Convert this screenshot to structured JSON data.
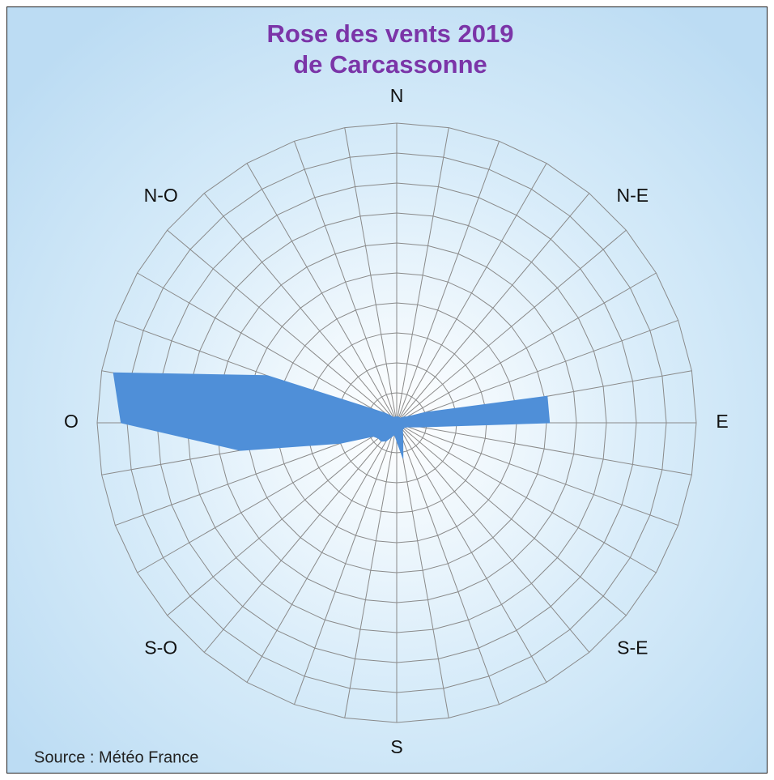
{
  "chart_data": {
    "type": "radar",
    "title": "Rose des vents 2019",
    "subtitle": "de Carcassonne",
    "source": "Source : Météo France",
    "compass_labels": [
      "N",
      "N-E",
      "E",
      "S-E",
      "S",
      "S-O",
      "O",
      "N-O"
    ],
    "x": [
      0,
      10,
      20,
      30,
      40,
      50,
      60,
      70,
      80,
      90,
      100,
      110,
      120,
      130,
      140,
      150,
      160,
      170,
      180,
      190,
      200,
      210,
      220,
      230,
      240,
      250,
      260,
      270,
      280,
      290,
      300,
      310,
      320,
      330,
      340,
      350
    ],
    "xlim": [
      0,
      360
    ],
    "values": [
      0.2,
      0.2,
      0.2,
      0.2,
      0.2,
      0.3,
      0.4,
      1.0,
      5.1,
      5.1,
      0.8,
      0.4,
      0.3,
      0.3,
      0.3,
      0.4,
      0.6,
      1.2,
      0.6,
      0.4,
      0.5,
      0.7,
      0.8,
      0.8,
      0.9,
      2.0,
      5.3,
      9.2,
      9.6,
      4.6,
      0.9,
      0.5,
      0.3,
      0.2,
      0.2,
      0.2
    ],
    "color": "#4f8fd8",
    "rlim": [
      0,
      10
    ],
    "rticks": [
      1,
      2,
      3,
      4,
      5,
      6,
      7,
      8,
      9,
      10
    ],
    "grid": true
  }
}
